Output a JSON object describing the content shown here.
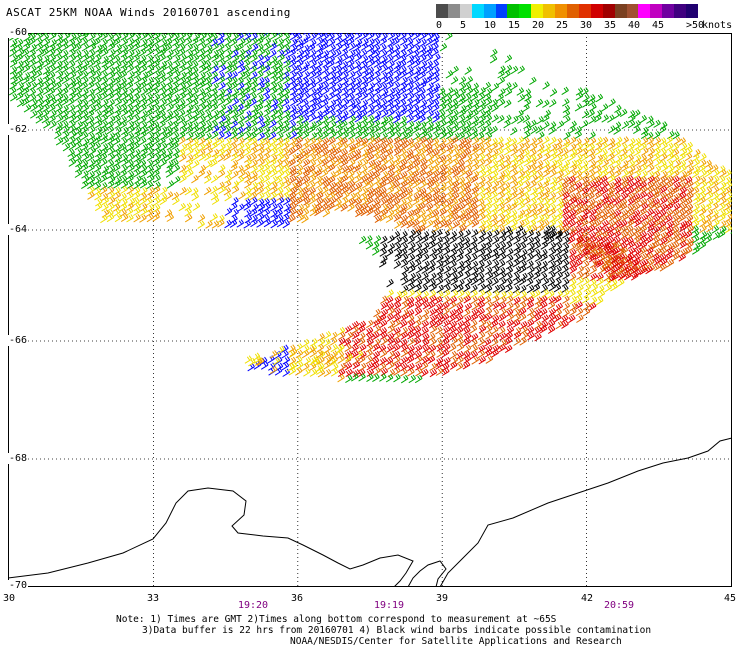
{
  "title": "ASCAT 25KM NOAA Winds 20160701 ascending",
  "legend": {
    "unit_label": "knots",
    "swatch_colors": [
      "#4c4c4c",
      "#8c8c8c",
      "#d0d0d0",
      "#00d8ff",
      "#00a0ff",
      "#0040ff",
      "#00c000",
      "#00e000",
      "#f0f000",
      "#f0c000",
      "#f09000",
      "#e06000",
      "#e03000",
      "#d00000",
      "#a00000",
      "#7a4020",
      "#a05030",
      "#ff00ff",
      "#c000c0",
      "#7000a0",
      "#400080",
      "#200070"
    ],
    "tick_labels": [
      "0",
      "5",
      "10",
      "15",
      "20",
      "25",
      "30",
      "35",
      "40",
      "45",
      ">50"
    ]
  },
  "map": {
    "lat_labels": [
      "-60",
      "-62",
      "-64",
      "-66",
      "-68",
      "-70"
    ],
    "lon_labels": [
      "30",
      "33",
      "36",
      "39",
      "42",
      "45"
    ],
    "time_labels": [
      "19:20",
      "19:19",
      "20:59"
    ],
    "lat_range": [
      -70,
      -60
    ],
    "lon_range": [
      30,
      45
    ],
    "grid": true,
    "wind_barb_colors": {
      "black": "#000000",
      "blue": "#0000ff",
      "green": "#00a800",
      "yellow": "#f0e000",
      "orange": "#f0a000",
      "dark_orange": "#e06000",
      "red": "#e00000"
    }
  },
  "notes": {
    "line1": "Note: 1) Times are GMT 2)Times along bottom correspond to measurement at ~65S",
    "line2": "3)Data buffer is 22 hrs from 20160701 4) Black wind barbs indicate possible contamination",
    "line3": "NOAA/NESDIS/Center for Satellite Applications and Research"
  }
}
